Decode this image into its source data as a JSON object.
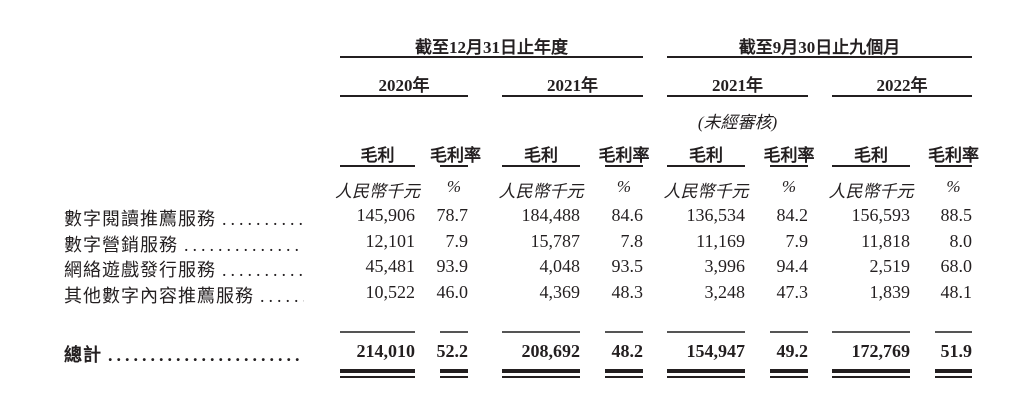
{
  "header": {
    "groups": [
      "截至12月31日止年度",
      "截至9月30日止九個月"
    ],
    "years": [
      "2020年",
      "2021年",
      "2021年",
      "2022年"
    ],
    "unaudited_note": "(未經審核)",
    "col_labels": [
      "毛利",
      "毛利率"
    ],
    "units": [
      "人民幣千元",
      "%"
    ]
  },
  "rows": [
    {
      "label": "數字閱讀推薦服務",
      "values": [
        "145,906",
        "78.7",
        "184,488",
        "84.6",
        "136,534",
        "84.2",
        "156,593",
        "88.5"
      ]
    },
    {
      "label": "數字營銷服務",
      "values": [
        "12,101",
        "7.9",
        "15,787",
        "7.8",
        "11,169",
        "7.9",
        "11,818",
        "8.0"
      ]
    },
    {
      "label": "網絡遊戲發行服務",
      "values": [
        "45,481",
        "93.9",
        "4,048",
        "93.5",
        "3,996",
        "94.4",
        "2,519",
        "68.0"
      ]
    },
    {
      "label": "其他數字內容推薦服務",
      "values": [
        "10,522",
        "46.0",
        "4,369",
        "48.3",
        "3,248",
        "47.3",
        "1,839",
        "48.1"
      ]
    }
  ],
  "total": {
    "label": "總計",
    "values": [
      "214,010",
      "52.2",
      "208,692",
      "48.2",
      "154,947",
      "49.2",
      "172,769",
      "51.9"
    ]
  },
  "leader_dots": "......................................"
}
